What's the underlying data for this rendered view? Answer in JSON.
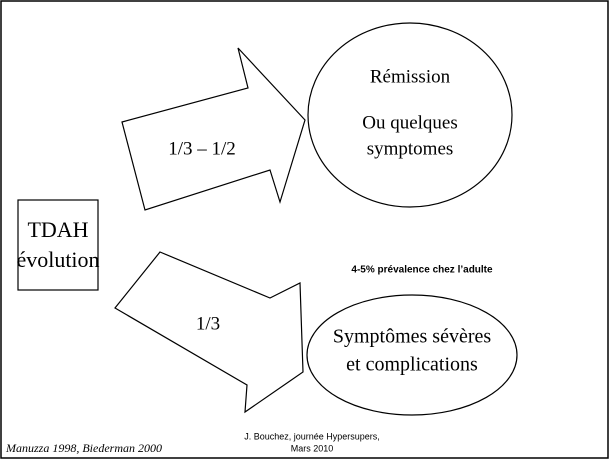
{
  "source_box": {
    "line1": "TDAH",
    "line2": "évolution"
  },
  "arrows": [
    {
      "label": "1/3 – 1/2"
    },
    {
      "label": "1/3"
    }
  ],
  "outcomes": [
    {
      "line1": "Rémission",
      "line2": "Ou quelques",
      "line3": "symptomes"
    },
    {
      "line1": "Symptômes sévères",
      "line2": "et complications"
    }
  ],
  "note": "4-5% prévalence chez l’adulte",
  "footer": {
    "citation": "Manuzza 1998, Biederman 2000",
    "author_line1": "J. Bouchez, journée Hypersupers,",
    "author_line2": "Mars 2010"
  }
}
